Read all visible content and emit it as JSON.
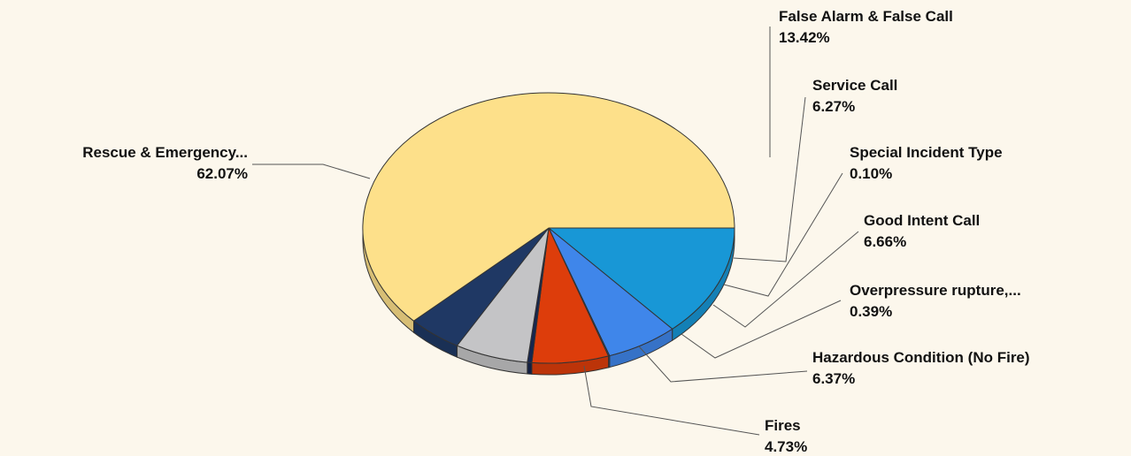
{
  "chart_data": {
    "type": "pie",
    "title": "",
    "slices": [
      {
        "label": "False Alarm & False Call",
        "percent_label": "13.42%",
        "value": 13.42,
        "color": "#1897d6"
      },
      {
        "label": "Service Call",
        "percent_label": "6.27%",
        "value": 6.27,
        "color": "#3f86ea"
      },
      {
        "label": "Special Incident Type",
        "percent_label": "0.10%",
        "value": 0.1,
        "color": "#2a5fb0"
      },
      {
        "label": "Good Intent Call",
        "percent_label": "6.66%",
        "value": 6.66,
        "color": "#dd3d0b"
      },
      {
        "label": "Overpressure  rupture,...",
        "percent_label": "0.39%",
        "value": 0.39,
        "color": "#16264f"
      },
      {
        "label": "Hazardous Condition (No Fire)",
        "percent_label": "6.37%",
        "value": 6.37,
        "color": "#c4c4c6"
      },
      {
        "label": "Fires",
        "percent_label": "4.73%",
        "value": 4.73,
        "color": "#1f3864"
      },
      {
        "label": "Rescue & Emergency...",
        "percent_label": "62.07%",
        "value": 62.07,
        "color": "#fde08a"
      }
    ],
    "start_angle_deg": 0,
    "direction": "clockwise-from-3-oclock",
    "style": "3d-tilted-with-leader-lines"
  }
}
